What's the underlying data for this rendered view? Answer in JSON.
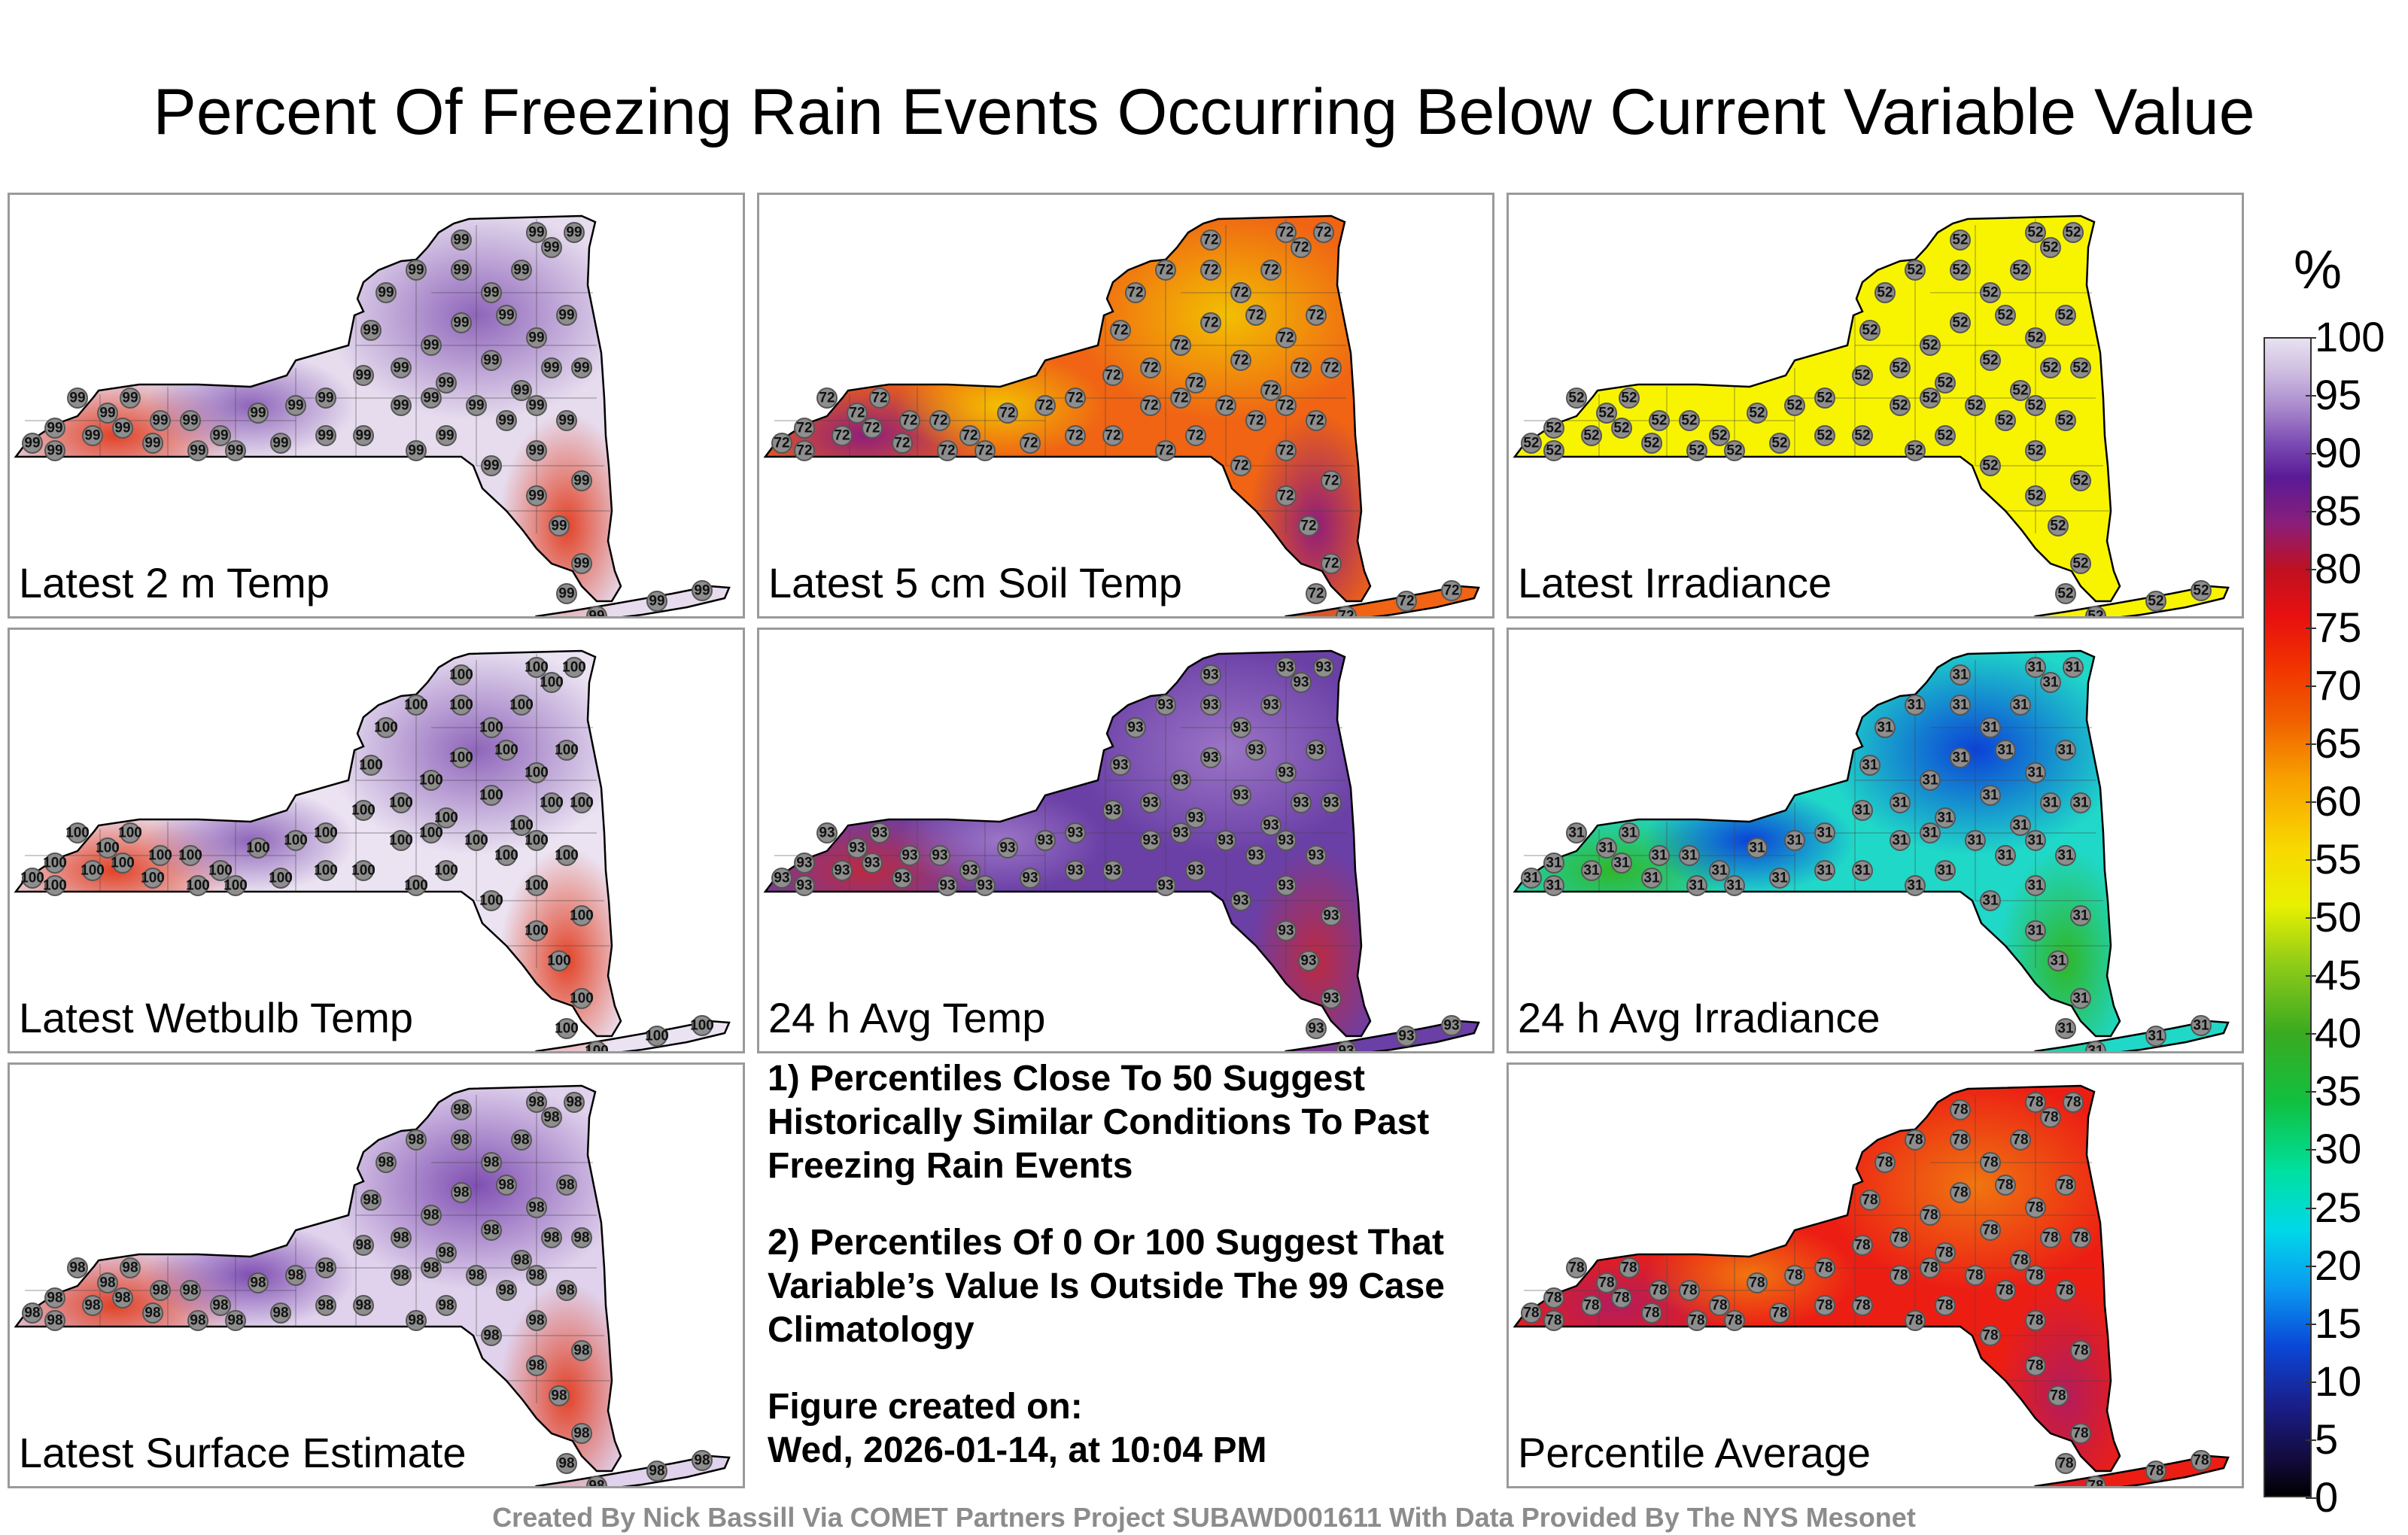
{
  "title": "Percent Of Freezing Rain Events Occurring Below Current Variable Value",
  "panels": [
    {
      "label": "Latest 2 m Temp",
      "base": "#e6dcee",
      "cool": "#8a5fb8",
      "hot": "#e23a1c",
      "station_value": "99"
    },
    {
      "label": "Latest 5 cm Soil Temp",
      "base": "#f06414",
      "cool": "#f2c400",
      "hot": "#8a1a80",
      "station_value": "72"
    },
    {
      "label": "Latest Irradiance",
      "base": "#f8f400",
      "cool": "#f8f400",
      "hot": "#f8f400",
      "station_value": "52"
    },
    {
      "label": "Latest Wetbulb Temp",
      "base": "#ebe3f2",
      "cool": "#8a5fb8",
      "hot": "#e23a1c",
      "station_value": "100"
    },
    {
      "label": "24 h Avg Temp",
      "base": "#6a3fa6",
      "cool": "#9e78c8",
      "hot": "#c0283c",
      "station_value": "93"
    },
    {
      "label": "24 h Avg Irradiance",
      "base": "#20d8c8",
      "cool": "#0a3ad8",
      "hot": "#30b420",
      "station_value": "31"
    },
    {
      "label": "Latest Surface Estimate",
      "base": "#e0d2ec",
      "cool": "#7a48b0",
      "hot": "#e23a1c",
      "station_value": "98"
    },
    {
      "label": "Percentile Average",
      "base": "#ec1e14",
      "cool": "#f07a10",
      "hot": "#b01c60",
      "station_value": "78"
    }
  ],
  "notes": {
    "note1": "1) Percentiles Close To 50 Suggest Historically Similar Conditions To Past Freezing Rain Events",
    "note2": "2) Percentiles Of 0 Or 100 Suggest That Variable’s Value Is Outside The 99 Case Climatology",
    "created_label": "Figure created on:",
    "created_date": "Wed, 2026-01-14, at 10:04 PM"
  },
  "colorbar": {
    "unit": "%",
    "ticks": [
      "100",
      "95",
      "90",
      "85",
      "80",
      "75",
      "70",
      "65",
      "60",
      "55",
      "50",
      "45",
      "40",
      "35",
      "30",
      "25",
      "20",
      "15",
      "10",
      "5",
      "0"
    ],
    "range": [
      0,
      100
    ]
  },
  "footer": "Created By Nick Bassill Via COMET Partners Project SUBAWD001611 With Data Provided By The NYS Mesonet"
}
